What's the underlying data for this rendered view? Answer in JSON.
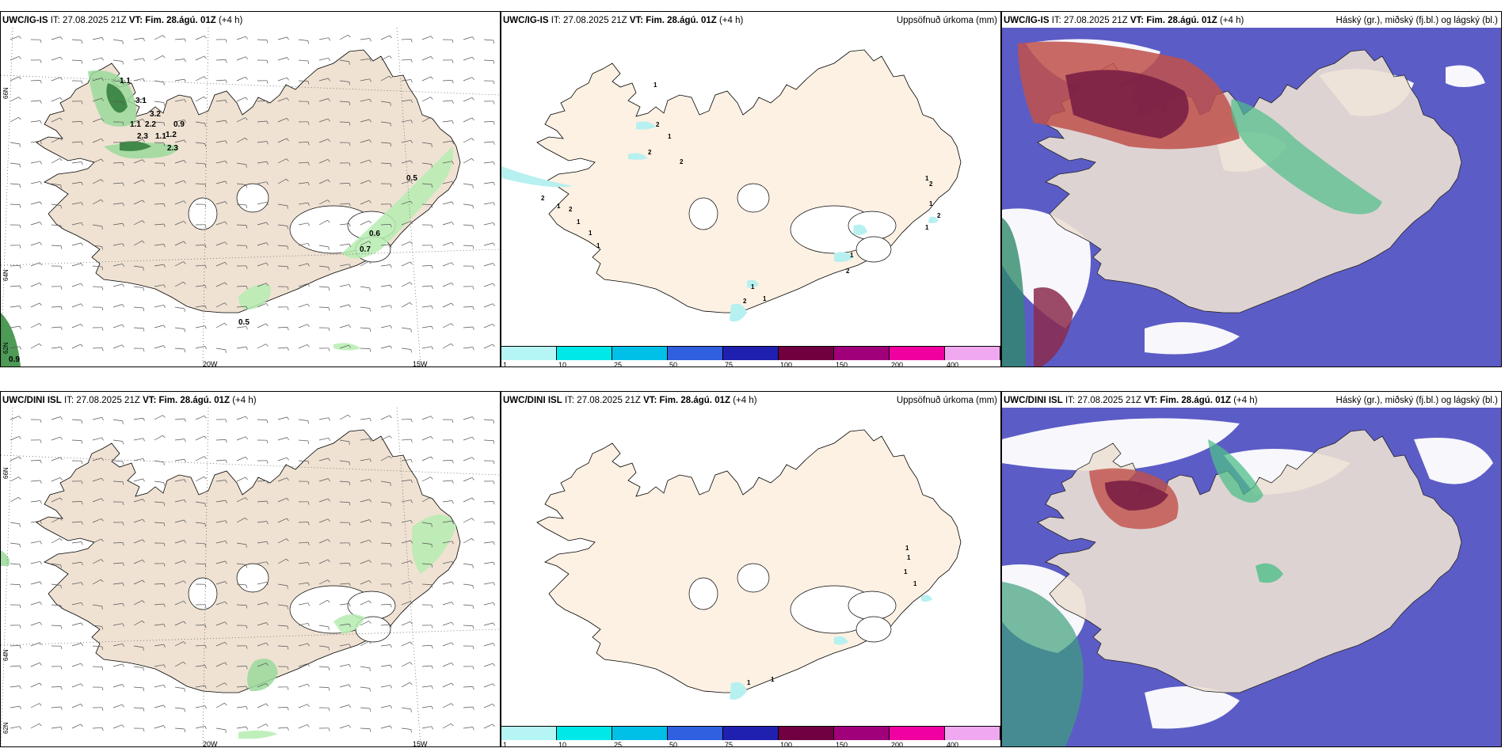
{
  "rows": [
    {
      "model": "UWC/IG-IS",
      "it_label": "IT:",
      "it_value": "27.08.2025 21Z",
      "vt_label": "VT:",
      "vt_value": "Fim. 28.ágú. 01Z",
      "lead": "(+4 h)",
      "wind_values": [
        "1.1",
        "3.1",
        "3.2",
        "2.2",
        "2.3",
        "1.2",
        "1.1",
        "1.1",
        "0.9",
        "2.3",
        "0.5",
        "0.6",
        "0.7",
        "0.5",
        "0.9"
      ],
      "precip_values": [
        "1",
        "2",
        "1",
        "2",
        "2",
        "2",
        "1",
        "2",
        "1",
        "1",
        "1",
        "1",
        "2",
        "1",
        "2",
        "1",
        "1",
        "2",
        "1",
        "1",
        "2"
      ]
    },
    {
      "model": "UWC/DINI ISL",
      "it_label": "IT:",
      "it_value": "27.08.2025 21Z",
      "vt_label": "VT:",
      "vt_value": "Fim. 28.ágú. 01Z",
      "lead": "(+4 h)",
      "wind_values": [],
      "precip_values": [
        "1",
        "1",
        "1",
        "1",
        "1",
        "1"
      ]
    }
  ],
  "precip_title": "Uppsöfnuð úrkoma (mm)",
  "cloud_title": "Háský (gr.), miðský (fj.bl.) og lágský (bl.)",
  "axis": {
    "lon_20": "20W",
    "lon_15": "15W",
    "lat_66": "66N",
    "lat_64": "64N",
    "lat_62": "62N"
  },
  "colorbar": {
    "labels": [
      "1",
      "10",
      "25",
      "50",
      "75",
      "100",
      "150",
      "200",
      "400"
    ],
    "colors": [
      "#b6f5f5",
      "#00e8e8",
      "#00c0e8",
      "#3060e0",
      "#2020b0",
      "#700040",
      "#a0007a",
      "#f000a0",
      "#f0a8f0"
    ]
  },
  "colors": {
    "land_wind": "#efe2d3",
    "land_precip": "#fdf1e3",
    "cloud_high": "#8b2c4d",
    "cloud_mid": "#c0504a",
    "cloud_low": "#5c5cc6",
    "wind_green_light": "#bff2b6",
    "wind_green_dark": "#2f8a3a"
  }
}
